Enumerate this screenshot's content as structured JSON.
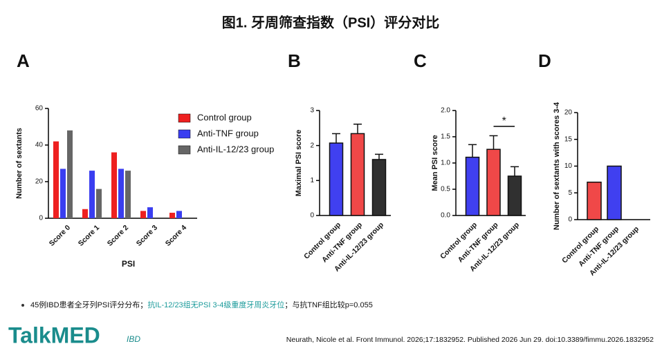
{
  "title": "图1. 牙周筛查指数（PSI）评分对比",
  "chart_data": [
    {
      "type": "bar",
      "panel": "A",
      "ylabel": "Number of sextants",
      "xlabel": "PSI",
      "categories": [
        "Score 0",
        "Score 1",
        "Score 2",
        "Score 3",
        "Score 4"
      ],
      "series": [
        {
          "name": "Control  group",
          "color": "#ee2020",
          "values": [
            42,
            5,
            36,
            4,
            3
          ]
        },
        {
          "name": "Anti-TNF group",
          "color": "#3a3ef0",
          "values": [
            27,
            26,
            27,
            6,
            4
          ]
        },
        {
          "name": "Anti-IL-12/23 group",
          "color": "#666666",
          "values": [
            48,
            16,
            26,
            0,
            0
          ]
        }
      ],
      "ylim": [
        0,
        60
      ],
      "yticks": [
        0,
        20,
        40,
        60
      ]
    },
    {
      "type": "bar",
      "panel": "B",
      "ylabel": "Maximal PSI score",
      "categories": [
        "Control group",
        "Anti-TNF group",
        "Anti-IL-12/23 group"
      ],
      "values": [
        2.07,
        2.34,
        1.6
      ],
      "errors": [
        0.27,
        0.27,
        0.15
      ],
      "colors": [
        "#4040f0",
        "#f04848",
        "#303030"
      ],
      "ylim": [
        0,
        3
      ],
      "yticks": [
        0,
        1,
        2,
        3
      ]
    },
    {
      "type": "bar",
      "panel": "C",
      "ylabel": "Mean PSI score",
      "categories": [
        "Control group",
        "Anti-TNF group",
        "Anti-IL-12/23 group"
      ],
      "values": [
        1.11,
        1.26,
        0.75
      ],
      "errors": [
        0.24,
        0.26,
        0.18
      ],
      "colors": [
        "#4040f0",
        "#f04848",
        "#303030"
      ],
      "annotation": "*",
      "ylim": [
        0,
        2
      ],
      "yticks": [
        {
          "value": 0,
          "label": "0.0"
        },
        0.5,
        {
          "value": 1,
          "label": "1.0"
        },
        1.5,
        {
          "value": 2,
          "label": "2.0"
        }
      ]
    },
    {
      "type": "bar",
      "panel": "D",
      "ylabel": "Number of sextants with scores 3-4",
      "categories": [
        "Control  group",
        "Anti-TNF group",
        "Anti-IL-12/23 group"
      ],
      "values": [
        7,
        10,
        0
      ],
      "colors": [
        "#f04848",
        "#4040f0",
        "#303030"
      ],
      "ylim": [
        0,
        20
      ],
      "yticks": [
        0,
        5,
        10,
        15,
        20
      ]
    }
  ],
  "bullet": [
    "45例IBD患者全牙列PSI评分分布；",
    "抗IL-12/23组无PSI 3-4级重度牙周炎牙位",
    "；与抗TNF组比较p=0.055"
  ],
  "logo": {
    "brand": "TalkMED",
    "tag": "IBD"
  },
  "citation": "Neurath, Nicole et al. Front Immunol. 2026;17:1832952. Published 2026 Jun 29. doi:10.3389/fimmu.2026.1832952"
}
